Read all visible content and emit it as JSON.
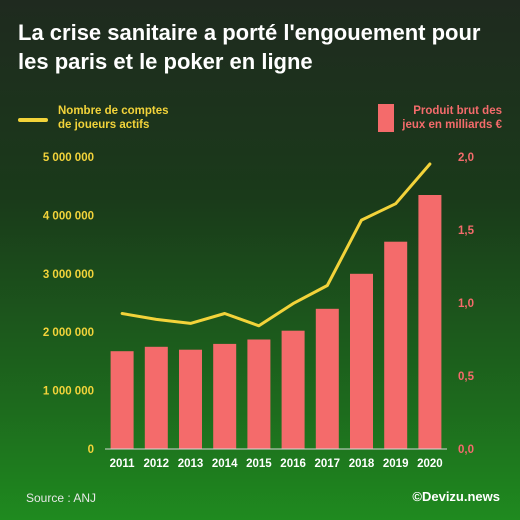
{
  "title": "La crise sanitaire a porté l'engouement pour les paris et le poker en ligne",
  "legend": {
    "line_label_1": "Nombre de comptes",
    "line_label_2": "de joueurs actifs",
    "bar_label_1": "Produit brut des",
    "bar_label_2": "jeux en milliards €"
  },
  "colors": {
    "line": "#f2d33a",
    "bars": "#f46b6b"
  },
  "chart_data": {
    "type": "bar+line",
    "categories": [
      "2011",
      "2012",
      "2013",
      "2014",
      "2015",
      "2016",
      "2017",
      "2018",
      "2019",
      "2020"
    ],
    "series": [
      {
        "name": "Nombre de comptes de joueurs actifs",
        "type": "line",
        "axis": "left",
        "values": [
          2320000,
          2220000,
          2150000,
          2320000,
          2110000,
          2490000,
          2800000,
          3920000,
          4200000,
          4880000
        ]
      },
      {
        "name": "Produit brut des jeux en milliards €",
        "type": "bar",
        "axis": "right",
        "values": [
          0.67,
          0.7,
          0.68,
          0.72,
          0.75,
          0.81,
          0.96,
          1.2,
          1.42,
          1.74
        ]
      }
    ],
    "y_left": {
      "ylim": [
        0,
        5000000
      ],
      "ticks": [
        0,
        1000000,
        2000000,
        3000000,
        4000000,
        5000000
      ],
      "tick_labels": [
        "0",
        "1 000 000",
        "2 000 000",
        "3 000 000",
        "4 000 000",
        "5 000 000"
      ]
    },
    "y_right": {
      "ylim": [
        0,
        2
      ],
      "ticks": [
        0,
        0.5,
        1,
        1.5,
        2
      ],
      "tick_labels": [
        "0,0",
        "0,5",
        "1,0",
        "1,5",
        "2,0"
      ]
    },
    "grid": false,
    "legend_position": "top"
  },
  "footer": {
    "source": "Source : ANJ",
    "credit": "©Devizu.news"
  }
}
